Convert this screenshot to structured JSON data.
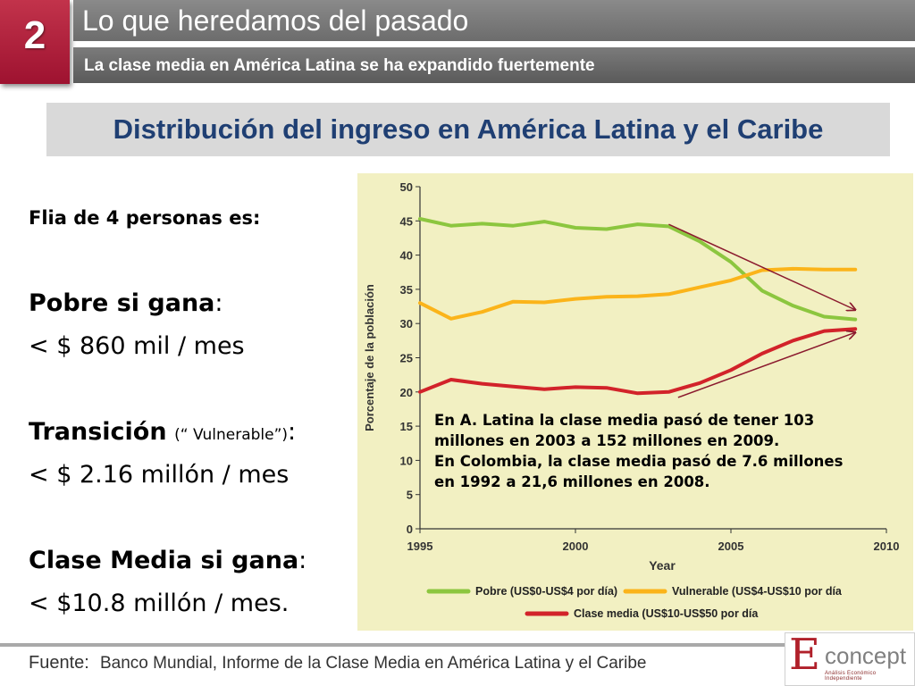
{
  "header": {
    "section_number": "2",
    "title": "Lo que heredamos del pasado",
    "subtitle": "La clase media en América Latina se ha expandido fuertemente"
  },
  "slide_title": "Distribución del ingreso en América Latina y el Caribe",
  "left": {
    "intro": "Flia de 4 personas es:",
    "pobre_label": "Pobre si gana",
    "pobre_value": "< $ 860 mil / mes",
    "transicion_label": "Transición",
    "transicion_note": "(“ Vulnerable”)",
    "transicion_value": "< $ 2.16 millón / mes",
    "media_label": "Clase Media si gana",
    "media_value": "< $10.8 millón / mes."
  },
  "annotation": {
    "line1": "En A. Latina la clase media pasó de tener 103 millones en 2003 a 152 millones en 2009.",
    "line2": "En Colombia, la clase media pasó de 7.6 millones en 1992 a 21,6 millones en 2008."
  },
  "footer": {
    "label": "Fuente:",
    "text": "Banco Mundial, Informe de la Clase Media en América Latina y el Caribe"
  },
  "logo": {
    "text_big": "E",
    "text_rest": "concept",
    "tagline": "Análisis Económico Independiente"
  },
  "colors": {
    "badge": "#a8193a",
    "slide_title": "#1f3f73",
    "chart_bg": "#f2f0c2",
    "pobre": "#8cc63f",
    "vulnerable": "#fbb41a",
    "media": "#d2232a",
    "arrow": "#8b1a2e"
  },
  "chart_data": {
    "type": "line",
    "title": "",
    "xlabel": "Year",
    "ylabel": "Porcentaje de la población",
    "xlim": [
      1995,
      2010
    ],
    "ylim": [
      0,
      50
    ],
    "xticks": [
      1995,
      2000,
      2005,
      2010
    ],
    "yticks": [
      0,
      5,
      10,
      15,
      20,
      25,
      30,
      35,
      40,
      45,
      50
    ],
    "legend_position": "bottom",
    "series": [
      {
        "name": "Pobre (US$0-US$4 por día)",
        "color": "#8cc63f",
        "x": [
          1995,
          1996,
          1997,
          1998,
          1999,
          2000,
          2001,
          2002,
          2003,
          2004,
          2005,
          2006,
          2007,
          2008,
          2009
        ],
        "y": [
          45.3,
          44.3,
          44.6,
          44.3,
          44.9,
          44.0,
          43.8,
          44.5,
          44.2,
          42.0,
          39.0,
          34.8,
          32.6,
          31.0,
          30.6
        ]
      },
      {
        "name": "Vulnerable (US$4-US$10 por día",
        "color": "#fbb41a",
        "x": [
          1995,
          1996,
          1997,
          1998,
          1999,
          2000,
          2001,
          2002,
          2003,
          2004,
          2005,
          2006,
          2007,
          2008,
          2009
        ],
        "y": [
          33.0,
          30.7,
          31.7,
          33.2,
          33.1,
          33.6,
          33.9,
          34.0,
          34.3,
          35.3,
          36.3,
          37.8,
          38.0,
          37.9,
          37.9
        ]
      },
      {
        "name": "Clase media (US$10-US$50 por día",
        "color": "#d2232a",
        "x": [
          1995,
          1996,
          1997,
          1998,
          1999,
          2000,
          2001,
          2002,
          2003,
          2004,
          2005,
          2006,
          2007,
          2008,
          2009
        ],
        "y": [
          20.0,
          21.8,
          21.2,
          20.8,
          20.4,
          20.7,
          20.6,
          19.8,
          20.0,
          21.3,
          23.2,
          25.6,
          27.5,
          28.9,
          29.2
        ]
      }
    ],
    "annotations": [
      {
        "type": "arrow",
        "from": [
          2003,
          44.5
        ],
        "to": [
          2009,
          32
        ]
      },
      {
        "type": "arrow",
        "from": [
          2003.3,
          19.2
        ],
        "to": [
          2009,
          28.7
        ]
      }
    ]
  }
}
